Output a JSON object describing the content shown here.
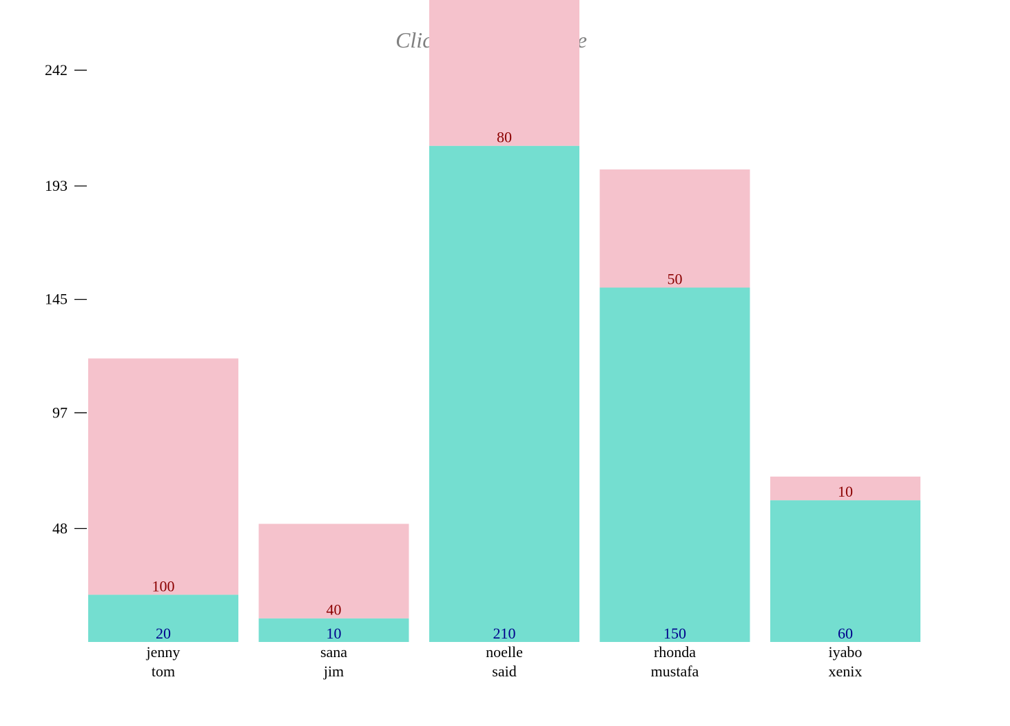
{
  "title_placeholder": "Click here to add title",
  "colors": {
    "top": "#f5c2cc",
    "bottom": "#74ded0",
    "top_label": "#8b0000",
    "bottom_label": "#00008b"
  },
  "chart_data": {
    "type": "bar",
    "stacked": true,
    "title": "",
    "categories": [
      [
        "jenny",
        "tom"
      ],
      [
        "sana",
        "jim"
      ],
      [
        "noelle",
        "said"
      ],
      [
        "rhonda",
        "mustafa"
      ],
      [
        "iyabo",
        "xenix"
      ]
    ],
    "series": [
      {
        "values": [
          20,
          10,
          210,
          150,
          60
        ]
      },
      {
        "values": [
          100,
          40,
          80,
          50,
          10
        ]
      }
    ],
    "yticks": [
      48,
      97,
      145,
      193,
      242
    ],
    "ylim": [
      0,
      290
    ],
    "grid": false
  }
}
